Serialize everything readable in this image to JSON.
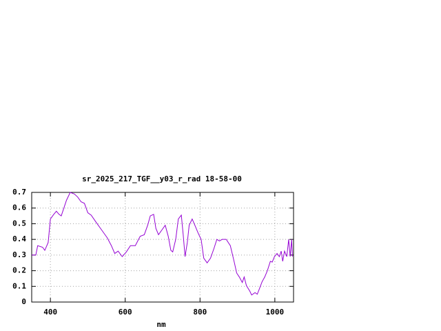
{
  "chart_data": {
    "type": "line",
    "title": "sr_2025_217_TGF__y03_r_rad 18-58-00",
    "x_label": "nm",
    "x": [
      350,
      361,
      366,
      379,
      385,
      394,
      400,
      409,
      416,
      423,
      429,
      436,
      443,
      453,
      464,
      473,
      482,
      491,
      500,
      509,
      522,
      537,
      552,
      563,
      572,
      581,
      592,
      603,
      614,
      627,
      640,
      651,
      660,
      667,
      676,
      682,
      689,
      698,
      707,
      715,
      722,
      727,
      735,
      742,
      750,
      755,
      760,
      766,
      771,
      779,
      788,
      795,
      803,
      810,
      819,
      828,
      837,
      845,
      852,
      859,
      870,
      881,
      891,
      898,
      905,
      913,
      918,
      924,
      933,
      938,
      947,
      953,
      958,
      966,
      973,
      980,
      988,
      993,
      999,
      1006,
      1012,
      1017,
      1021,
      1026,
      1032,
      1037,
      1041,
      1045,
      1047
    ],
    "values": [
      0.3,
      0.3,
      0.36,
      0.35,
      0.33,
      0.38,
      0.53,
      0.56,
      0.58,
      0.56,
      0.55,
      0.6,
      0.65,
      0.7,
      0.69,
      0.67,
      0.64,
      0.63,
      0.57,
      0.555,
      0.51,
      0.46,
      0.41,
      0.36,
      0.31,
      0.325,
      0.29,
      0.32,
      0.36,
      0.36,
      0.42,
      0.43,
      0.49,
      0.55,
      0.56,
      0.47,
      0.43,
      0.46,
      0.49,
      0.42,
      0.33,
      0.32,
      0.4,
      0.53,
      0.555,
      0.43,
      0.29,
      0.38,
      0.49,
      0.53,
      0.48,
      0.44,
      0.4,
      0.28,
      0.25,
      0.28,
      0.34,
      0.4,
      0.39,
      0.4,
      0.4,
      0.36,
      0.26,
      0.185,
      0.16,
      0.125,
      0.16,
      0.105,
      0.07,
      0.045,
      0.06,
      0.05,
      0.08,
      0.13,
      0.16,
      0.2,
      0.26,
      0.255,
      0.29,
      0.31,
      0.29,
      0.325,
      0.26,
      0.325,
      0.29,
      0.4,
      0.29,
      0.4,
      0.29
    ],
    "color": "#9400d3",
    "xlim": [
      350,
      1050
    ],
    "xticks": [
      400,
      600,
      800,
      1000
    ],
    "ylim": [
      0,
      0.7
    ],
    "yticks": [
      0,
      0.1,
      0.2,
      0.3,
      0.4,
      0.5,
      0.6,
      0.7
    ],
    "grid": true
  }
}
